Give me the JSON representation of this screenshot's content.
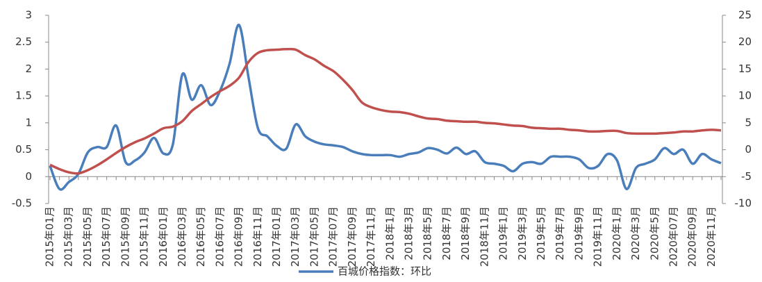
{
  "chart_data": {
    "type": "line",
    "categories": [
      "2015年01月",
      null,
      "2015年03月",
      null,
      "2015年05月",
      null,
      "2015年07月",
      null,
      "2015年09月",
      null,
      "2015年11月",
      null,
      "2016年01月",
      null,
      "2016年03月",
      null,
      "2016年05月",
      null,
      "2016年07月",
      null,
      "2016年09月",
      null,
      "2016年11月",
      null,
      "2017年01月",
      null,
      "2017年03月",
      null,
      "2017年05月",
      null,
      "2017年07月",
      null,
      "2017年09月",
      null,
      "2017年11月",
      null,
      "2018年1月",
      null,
      "2018年3月",
      null,
      "2018年5月",
      null,
      "2018年7月",
      null,
      "2018年9月",
      null,
      "2018年11月",
      null,
      "2019年1月",
      null,
      "2019年3月",
      null,
      "2019年5月",
      null,
      "2019年7月",
      null,
      "2019年9月",
      null,
      "2019年11月",
      null,
      "2020年1月",
      null,
      "2020年3月",
      null,
      "2020年5月",
      null,
      "2020年07月",
      null,
      "2020年09月",
      null,
      "2020年11月",
      null
    ],
    "series": [
      {
        "name": "百城价格指数：环比",
        "color": "#4a7ebb",
        "axis": "y",
        "values": [
          0.2,
          -0.23,
          -0.1,
          0.05,
          0.45,
          0.55,
          0.55,
          0.95,
          0.27,
          0.3,
          0.45,
          0.72,
          0.43,
          0.6,
          1.9,
          1.43,
          1.7,
          1.33,
          1.6,
          2.1,
          2.82,
          1.85,
          0.9,
          0.75,
          0.57,
          0.52,
          0.97,
          0.75,
          0.65,
          0.6,
          0.58,
          0.55,
          0.47,
          0.42,
          0.4,
          0.4,
          0.4,
          0.37,
          0.42,
          0.45,
          0.53,
          0.5,
          0.43,
          0.54,
          0.42,
          0.47,
          0.27,
          0.24,
          0.2,
          0.1,
          0.24,
          0.27,
          0.24,
          0.37,
          0.37,
          0.37,
          0.32,
          0.16,
          0.2,
          0.42,
          0.3,
          -0.23,
          0.16,
          0.24,
          0.32,
          0.53,
          0.42,
          0.5,
          0.24,
          0.42,
          0.32,
          0.25
        ]
      },
      {
        "color": "#c0504d",
        "axis": "y2",
        "values": [
          -2.8,
          -3.6,
          -4.2,
          -4.4,
          -3.8,
          -2.9,
          -1.8,
          -0.6,
          0.5,
          1.4,
          2.1,
          3.0,
          4.0,
          4.3,
          5.3,
          7.2,
          8.5,
          9.8,
          10.9,
          11.9,
          13.4,
          16.3,
          18,
          18.5,
          18.6,
          18.7,
          18.6,
          17.6,
          16.8,
          15.6,
          14.6,
          13,
          11.1,
          8.8,
          7.9,
          7.4,
          7.1,
          7,
          6.7,
          6.2,
          5.8,
          5.7,
          5.4,
          5.3,
          5.2,
          5.2,
          5,
          4.9,
          4.7,
          4.5,
          4.4,
          4.1,
          4,
          3.9,
          3.9,
          3.7,
          3.6,
          3.4,
          3.4,
          3.5,
          3.5,
          3.1,
          3,
          3,
          3,
          3.1,
          3.2,
          3.4,
          3.4,
          3.6,
          3.7,
          3.6
        ]
      }
    ],
    "ylim": [
      -0.5,
      3
    ],
    "yticks": [
      -0.5,
      0,
      0.5,
      1,
      1.5,
      2,
      2.5,
      3
    ],
    "y2lim": [
      -10,
      25
    ],
    "y2ticks": [
      -10,
      -5,
      0,
      5,
      10,
      15,
      20,
      25
    ],
    "grid": false,
    "legend": "bottom"
  }
}
